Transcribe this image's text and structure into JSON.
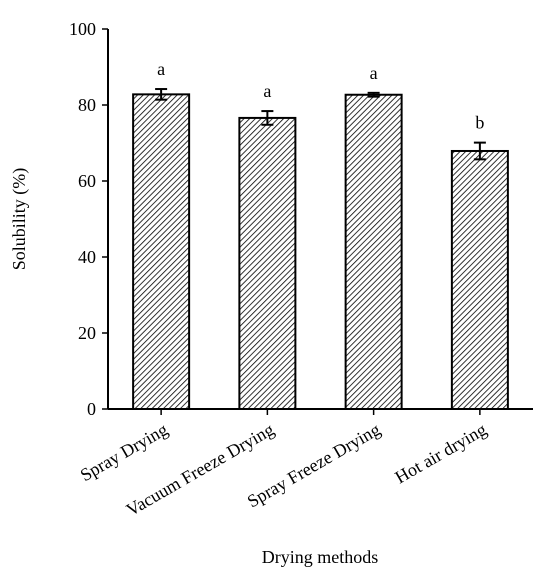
{
  "chart_data": {
    "type": "bar",
    "categories": [
      "Spray Drying",
      "Vacuum Freeze Drying",
      "Spray Freeze Drying",
      "Hot air drying"
    ],
    "values": [
      82.8,
      76.6,
      82.7,
      67.9
    ],
    "errors": [
      1.4,
      1.8,
      0.5,
      2.2
    ],
    "significance": [
      "a",
      "a",
      "a",
      "b"
    ],
    "title": "",
    "xlabel": "Drying methods",
    "ylabel": "Solubility (%)",
    "ylim": [
      0,
      100
    ],
    "yticks": [
      0,
      20,
      40,
      60,
      80,
      100
    ],
    "grid": false,
    "legend": "none",
    "bar_fill": "hatched",
    "colors": {
      "bar_stroke": "#000000",
      "hatch": "#000000",
      "background": "#ffffff"
    }
  }
}
